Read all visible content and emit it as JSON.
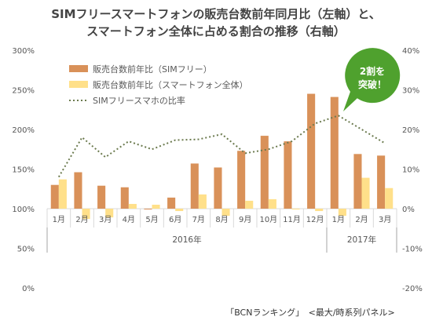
{
  "title_line1": "SIMフリースマートフォンの販売台数前年同月比（左軸）と、",
  "title_line2": "スマートフォン全体に占める割合の推移（右軸）",
  "callout_line1": "2割を",
  "callout_line2": "突破！",
  "source": "「BCNランキング」　<最大/時系列パネル>",
  "colors": {
    "sim_bar": "#D99159",
    "smart_bar": "#FFE08A",
    "ratio_line": "#6B7A4E",
    "callout": "#4FA12E",
    "axis": "#D9D9D9"
  },
  "chart_data": {
    "type": "bar",
    "categories": [
      "1月",
      "2月",
      "3月",
      "4月",
      "5月",
      "6月",
      "7月",
      "8月",
      "9月",
      "10月",
      "11月",
      "12月",
      "1月",
      "2月",
      "3月"
    ],
    "year_groups": [
      {
        "label": "2016年",
        "from": 0,
        "to": 11
      },
      {
        "label": "2017年",
        "from": 12,
        "to": 14
      }
    ],
    "series": [
      {
        "name": "販売台数前年比（SIMフリー）",
        "axis": "left",
        "kind": "bar",
        "values": [
          130,
          146,
          129,
          127,
          99,
          114,
          157,
          152,
          173,
          192,
          185,
          245,
          241,
          169,
          167
        ]
      },
      {
        "name": "販売台数前年比（スマートフォン全体）",
        "axis": "left",
        "kind": "bar",
        "values": [
          137,
          87,
          89,
          106,
          105,
          97,
          118,
          91,
          110,
          112,
          99,
          97,
          91,
          139,
          126
        ]
      },
      {
        "name": "SIMフリースマホの比率",
        "axis": "right",
        "kind": "line",
        "values": [
          8,
          18,
          13,
          17,
          15,
          17.3,
          17.5,
          18.8,
          14,
          15,
          17,
          21.5,
          23.5,
          20,
          16.5
        ]
      }
    ],
    "y_left": {
      "min": 0,
      "max": 300,
      "step": 50,
      "ticks": [
        "0%",
        "50%",
        "100%",
        "150%",
        "200%",
        "250%",
        "300%"
      ]
    },
    "y_right": {
      "min": -20,
      "max": 40,
      "step": 10,
      "ticks": [
        "-20%",
        "-10%",
        "0%",
        "10%",
        "20%",
        "30%",
        "40%"
      ]
    },
    "baseline_left": 100,
    "grid": false,
    "legend_position": "top-left"
  }
}
